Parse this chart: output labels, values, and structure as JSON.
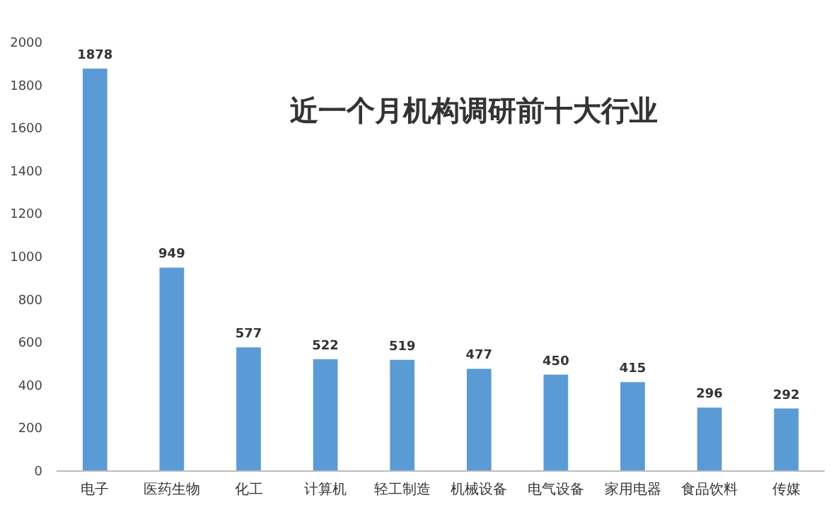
{
  "chart_data": {
    "type": "bar",
    "title": "近一个月机构调研前十大行业",
    "categories": [
      "电子",
      "医药生物",
      "化工",
      "计算机",
      "轻工制造",
      "机械设备",
      "电气设备",
      "家用电器",
      "食品饮料",
      "传媒"
    ],
    "values": [
      1878,
      949,
      577,
      522,
      519,
      477,
      450,
      415,
      296,
      292
    ],
    "color": "#5b9bd5",
    "ylim": [
      0,
      2000
    ],
    "yticks": [
      0,
      200,
      400,
      600,
      800,
      1000,
      1200,
      1400,
      1600,
      1800,
      2000
    ],
    "data_labels": true
  }
}
